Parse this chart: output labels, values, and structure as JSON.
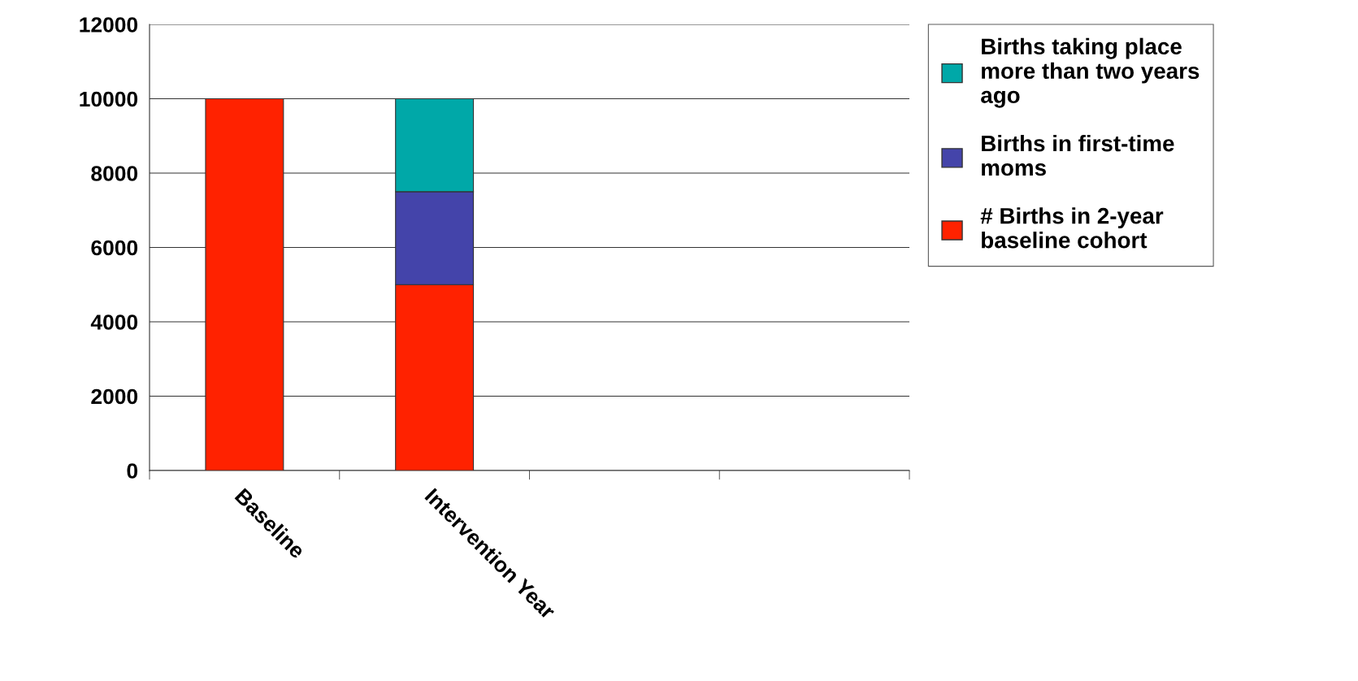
{
  "chart_data": {
    "type": "bar",
    "stacked": true,
    "categories": [
      "Baseline",
      "Intervention Year",
      null,
      null
    ],
    "series": [
      {
        "name": "# Births in 2-year\nbaseline cohort",
        "color": "#ff2200",
        "values": [
          10000,
          5000,
          null,
          null
        ]
      },
      {
        "name": "Births in first-time\nmoms",
        "color": "#4444aa",
        "values": [
          null,
          2500,
          null,
          null
        ]
      },
      {
        "name": "Births taking place\nmore than two years\nago",
        "color": "#00a8a8",
        "values": [
          null,
          2500,
          null,
          null
        ]
      }
    ],
    "ylim": [
      0,
      12000
    ],
    "yticks": [
      0,
      2000,
      4000,
      6000,
      8000,
      10000,
      12000
    ],
    "grid": "y",
    "legend": "right"
  }
}
